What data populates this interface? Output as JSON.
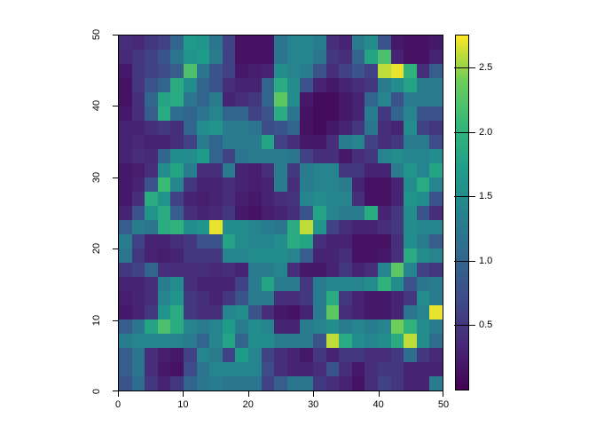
{
  "figure": {
    "title": "",
    "background": "#ffffff"
  },
  "chart_data": {
    "type": "heatmap",
    "title": "",
    "xlabel": "",
    "ylabel": "",
    "x_range": [
      0,
      50
    ],
    "y_range": [
      0,
      50
    ],
    "grid_size": [
      25,
      25
    ],
    "value_range": [
      0,
      2.75
    ],
    "colormap": "viridis",
    "x_ticks": [
      "0",
      "10",
      "20",
      "30",
      "40",
      "50"
    ],
    "x_tick_values": [
      0,
      10,
      20,
      30,
      40,
      50
    ],
    "y_ticks": [
      "0",
      "10",
      "20",
      "30",
      "40",
      "50"
    ],
    "y_tick_values": [
      0,
      10,
      20,
      30,
      40,
      50
    ],
    "colorbar_ticks": [
      "0.5",
      "1.0",
      "1.5",
      "2.0",
      "2.5"
    ],
    "colorbar_tick_values": [
      0.5,
      1.0,
      1.5,
      2.0,
      2.5
    ],
    "legend_position": "right",
    "grid": false,
    "values_rows_top_to_bottom": [
      [
        0.4,
        0.35,
        0.5,
        0.6,
        1.0,
        1.7,
        1.6,
        1.2,
        0.6,
        0.15,
        0.15,
        0.15,
        1.2,
        1.4,
        1.4,
        1.3,
        0.4,
        0.3,
        1.3,
        1.5,
        0.8,
        0.2,
        0.15,
        0.15,
        0.2
      ],
      [
        0.35,
        0.5,
        0.6,
        0.8,
        1.2,
        1.6,
        1.7,
        1.3,
        0.6,
        0.15,
        0.15,
        0.15,
        1.2,
        1.4,
        1.4,
        1.2,
        0.5,
        0.4,
        1.0,
        1.8,
        2.2,
        0.3,
        0.15,
        0.15,
        0.3
      ],
      [
        0.2,
        0.5,
        0.6,
        0.7,
        0.9,
        2.2,
        1.2,
        0.8,
        0.6,
        0.2,
        0.25,
        0.3,
        1.5,
        1.4,
        1.3,
        0.8,
        0.4,
        0.6,
        0.8,
        0.6,
        2.6,
        2.7,
        2.0,
        0.4,
        0.9
      ],
      [
        0.15,
        0.5,
        0.8,
        1.0,
        1.9,
        1.5,
        1.0,
        0.8,
        0.4,
        0.3,
        0.3,
        1.0,
        1.9,
        1.5,
        0.8,
        0.3,
        0.2,
        0.3,
        0.4,
        0.5,
        1.3,
        1.5,
        1.8,
        1.3,
        1.3
      ],
      [
        0.15,
        0.4,
        1.0,
        1.8,
        1.9,
        1.2,
        1.0,
        1.3,
        0.3,
        0.4,
        0.5,
        1.0,
        2.3,
        1.5,
        0.2,
        0.1,
        0.1,
        0.2,
        0.3,
        1.0,
        1.4,
        0.8,
        1.3,
        1.3,
        1.3
      ],
      [
        0.2,
        0.4,
        0.9,
        1.9,
        1.1,
        1.0,
        1.2,
        1.4,
        1.0,
        1.0,
        0.6,
        0.8,
        1.9,
        1.2,
        0.15,
        0.1,
        0.1,
        0.2,
        0.3,
        1.3,
        0.5,
        1.0,
        1.4,
        0.8,
        0.8
      ],
      [
        0.3,
        0.3,
        0.4,
        0.5,
        0.4,
        1.0,
        1.5,
        1.6,
        1.3,
        1.3,
        1.2,
        0.7,
        0.8,
        1.0,
        0.15,
        0.1,
        0.2,
        0.3,
        0.5,
        1.2,
        0.4,
        0.3,
        1.5,
        0.6,
        0.5
      ],
      [
        0.3,
        0.35,
        0.3,
        0.3,
        0.4,
        0.6,
        1.3,
        1.0,
        1.3,
        1.3,
        1.3,
        1.8,
        0.6,
        0.4,
        0.2,
        0.2,
        0.4,
        1.3,
        1.4,
        0.6,
        0.4,
        0.5,
        1.3,
        1.3,
        0.7
      ],
      [
        0.3,
        0.4,
        0.35,
        1.0,
        1.5,
        1.5,
        1.7,
        1.0,
        0.6,
        1.2,
        1.3,
        1.3,
        1.3,
        1.2,
        0.6,
        0.4,
        0.4,
        0.2,
        0.4,
        0.5,
        1.4,
        1.5,
        1.4,
        1.4,
        1.5
      ],
      [
        0.2,
        0.25,
        0.4,
        1.5,
        1.8,
        1.3,
        0.4,
        0.4,
        1.3,
        0.3,
        0.25,
        0.4,
        1.3,
        0.5,
        1.3,
        1.4,
        1.4,
        0.5,
        0.5,
        0.3,
        0.3,
        1.3,
        1.6,
        1.4,
        1.8
      ],
      [
        0.2,
        0.3,
        0.8,
        2.1,
        1.4,
        0.5,
        0.3,
        0.3,
        0.4,
        0.3,
        0.25,
        0.3,
        1.3,
        0.4,
        1.3,
        1.4,
        1.4,
        1.3,
        0.3,
        0.15,
        0.15,
        0.3,
        1.5,
        1.9,
        1.4
      ],
      [
        0.2,
        0.4,
        1.9,
        1.6,
        0.6,
        0.3,
        0.25,
        0.3,
        0.4,
        0.25,
        0.2,
        0.3,
        0.4,
        0.45,
        1.4,
        1.5,
        1.4,
        1.4,
        0.4,
        0.15,
        0.15,
        0.3,
        1.6,
        1.5,
        0.8
      ],
      [
        0.3,
        0.8,
        1.6,
        1.9,
        0.9,
        0.4,
        0.3,
        0.35,
        0.5,
        0.2,
        0.15,
        0.25,
        0.3,
        0.4,
        0.8,
        1.8,
        1.4,
        1.3,
        1.3,
        1.9,
        0.3,
        0.5,
        1.5,
        0.8,
        0.4
      ],
      [
        0.9,
        1.3,
        1.2,
        1.9,
        2.0,
        1.5,
        1.6,
        2.7,
        1.5,
        1.5,
        1.4,
        1.3,
        1.2,
        1.9,
        2.6,
        1.6,
        0.6,
        0.4,
        0.3,
        0.3,
        0.4,
        0.5,
        1.5,
        1.4,
        1.4
      ],
      [
        1.3,
        0.6,
        0.3,
        0.3,
        0.4,
        0.5,
        0.8,
        0.8,
        1.8,
        1.5,
        1.4,
        1.4,
        1.5,
        1.9,
        1.8,
        0.4,
        0.3,
        0.3,
        0.15,
        0.15,
        0.15,
        0.4,
        1.5,
        1.3,
        0.9
      ],
      [
        1.2,
        0.5,
        0.3,
        0.25,
        0.3,
        0.5,
        0.5,
        0.5,
        1.4,
        1.4,
        1.5,
        1.5,
        1.5,
        1.4,
        0.9,
        0.3,
        0.3,
        0.4,
        0.15,
        0.15,
        0.2,
        0.4,
        1.9,
        1.5,
        1.4
      ],
      [
        0.5,
        0.6,
        1.0,
        0.4,
        0.4,
        0.4,
        0.4,
        0.35,
        0.4,
        0.3,
        1.3,
        1.3,
        1.4,
        0.4,
        0.2,
        0.2,
        0.3,
        0.5,
        0.3,
        0.4,
        1.4,
        2.3,
        1.4,
        0.6,
        0.5
      ],
      [
        0.3,
        0.3,
        0.4,
        1.3,
        1.5,
        0.4,
        0.3,
        0.3,
        0.3,
        0.6,
        1.3,
        1.8,
        1.3,
        1.3,
        0.5,
        1.3,
        1.4,
        1.4,
        1.4,
        1.5,
        2.0,
        1.5,
        0.8,
        1.2,
        1.3
      ],
      [
        0.25,
        0.3,
        0.4,
        1.4,
        1.6,
        0.5,
        0.4,
        0.3,
        0.5,
        0.8,
        1.3,
        1.3,
        0.4,
        0.4,
        0.5,
        1.3,
        1.9,
        0.5,
        0.3,
        0.2,
        0.2,
        0.3,
        0.5,
        1.5,
        1.3
      ],
      [
        0.2,
        0.3,
        0.5,
        1.6,
        1.9,
        0.5,
        0.4,
        0.4,
        1.4,
        1.5,
        0.8,
        0.4,
        0.2,
        0.15,
        0.3,
        1.3,
        2.3,
        0.4,
        0.3,
        0.2,
        0.2,
        0.3,
        1.2,
        1.4,
        2.7
      ],
      [
        0.9,
        1.2,
        1.8,
        2.2,
        1.9,
        1.4,
        1.3,
        1.4,
        1.7,
        1.3,
        1.5,
        1.4,
        0.3,
        0.3,
        1.3,
        1.4,
        1.5,
        1.3,
        1.4,
        1.3,
        1.4,
        2.4,
        2.0,
        1.5,
        1.3
      ],
      [
        1.3,
        1.4,
        1.4,
        1.4,
        1.4,
        1.3,
        1.0,
        1.4,
        1.8,
        1.0,
        1.5,
        1.5,
        1.3,
        1.3,
        1.3,
        0.8,
        2.6,
        1.9,
        1.5,
        1.4,
        1.5,
        1.9,
        2.6,
        1.5,
        1.1
      ],
      [
        0.9,
        1.2,
        0.4,
        0.25,
        0.2,
        0.6,
        1.4,
        1.3,
        0.6,
        1.7,
        1.4,
        0.6,
        0.4,
        0.3,
        0.2,
        0.5,
        0.3,
        0.5,
        0.5,
        0.4,
        0.4,
        0.5,
        1.1,
        0.5,
        0.35
      ],
      [
        0.9,
        1.2,
        0.4,
        0.2,
        0.15,
        0.7,
        1.2,
        1.4,
        1.4,
        1.4,
        1.4,
        0.7,
        0.4,
        0.3,
        0.3,
        0.4,
        0.8,
        0.4,
        0.2,
        0.4,
        0.5,
        0.5,
        0.3,
        0.3,
        0.3
      ],
      [
        0.8,
        1.1,
        0.5,
        0.3,
        0.5,
        1.0,
        1.2,
        1.3,
        1.2,
        1.2,
        1.2,
        0.6,
        0.9,
        1.2,
        1.2,
        0.5,
        0.4,
        0.3,
        0.15,
        0.4,
        0.6,
        0.5,
        0.3,
        0.3,
        1.3
      ]
    ]
  },
  "colors": {
    "axis": "#000000",
    "tick_label": "#000000",
    "viridis_stops": [
      "#440154",
      "#482878",
      "#3e4a89",
      "#31688e",
      "#26828e",
      "#1f9e89",
      "#35b779",
      "#6ece58",
      "#fde725"
    ]
  }
}
